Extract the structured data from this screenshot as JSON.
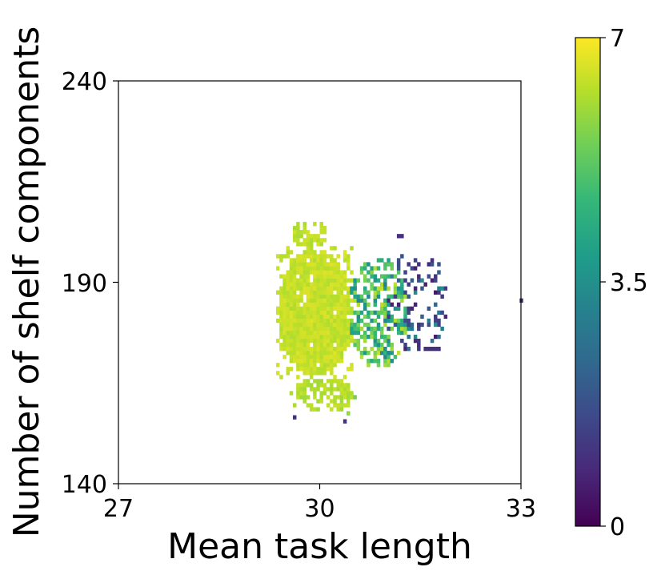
{
  "chart_data": {
    "type": "heatmap",
    "title": "",
    "xlabel": "Mean task length",
    "ylabel": "Number of shelf components",
    "xlim": [
      27,
      33
    ],
    "ylim": [
      140,
      240
    ],
    "xticks": [
      27,
      30,
      33
    ],
    "yticks": [
      140,
      190,
      240
    ],
    "x_tick_labels": [
      "27",
      "30",
      "33"
    ],
    "y_tick_labels": [
      "140",
      "190",
      "240"
    ],
    "bin_size": {
      "x": 0.05,
      "y": 1
    },
    "grid": false,
    "colorbar": {
      "colormap": "viridis",
      "range": [
        0,
        7
      ],
      "ticks": [
        0,
        3.5,
        7
      ],
      "tick_labels": [
        "0",
        "3.5",
        "7"
      ],
      "placement": "right"
    },
    "colors": {
      "viridis": [
        "#440154",
        "#482878",
        "#3e4989",
        "#31688e",
        "#26828e",
        "#1f9e89",
        "#35b779",
        "#6ece58",
        "#b5de2b",
        "#fde725"
      ],
      "axis": "#000000"
    },
    "regions": [
      {
        "desc": "dense core",
        "x_range": [
          29.35,
          30.45
        ],
        "y_range": [
          166,
          198
        ],
        "value": 6.4
      },
      {
        "desc": "upper spike",
        "x_range": [
          29.55,
          30.1
        ],
        "y_range": [
          198,
          205
        ],
        "value": 6.3
      },
      {
        "desc": "lower tail",
        "x_range": [
          29.5,
          30.5
        ],
        "y_range": [
          157,
          166
        ],
        "value": 6.2
      },
      {
        "desc": "transition zone",
        "x_range": [
          30.4,
          31.3
        ],
        "y_range": [
          168,
          196
        ],
        "value": 4.8
      },
      {
        "desc": "sparse right spread",
        "x_range": [
          30.9,
          31.9
        ],
        "y_range": [
          172,
          198
        ],
        "value": 2.0
      }
    ],
    "outliers": [
      {
        "x": 32.98,
        "y": 185,
        "value": 1.0
      },
      {
        "x": 31.65,
        "y": 173,
        "value": 1.0
      },
      {
        "x": 31.7,
        "y": 173,
        "value": 1.0
      },
      {
        "x": 31.75,
        "y": 173,
        "value": 1.0
      },
      {
        "x": 31.6,
        "y": 173,
        "value": 1.0
      },
      {
        "x": 31.8,
        "y": 178,
        "value": 3.0
      },
      {
        "x": 31.7,
        "y": 179,
        "value": 3.5
      },
      {
        "x": 31.45,
        "y": 194,
        "value": 1.0
      },
      {
        "x": 31.65,
        "y": 195,
        "value": 1.0
      },
      {
        "x": 31.15,
        "y": 201,
        "value": 1.0
      },
      {
        "x": 31.2,
        "y": 201,
        "value": 1.0
      },
      {
        "x": 30.5,
        "y": 161,
        "value": 5.5
      },
      {
        "x": 30.4,
        "y": 157,
        "value": 5.8
      },
      {
        "x": 29.6,
        "y": 156,
        "value": 1.0
      },
      {
        "x": 30.35,
        "y": 155,
        "value": 1.0
      }
    ]
  }
}
